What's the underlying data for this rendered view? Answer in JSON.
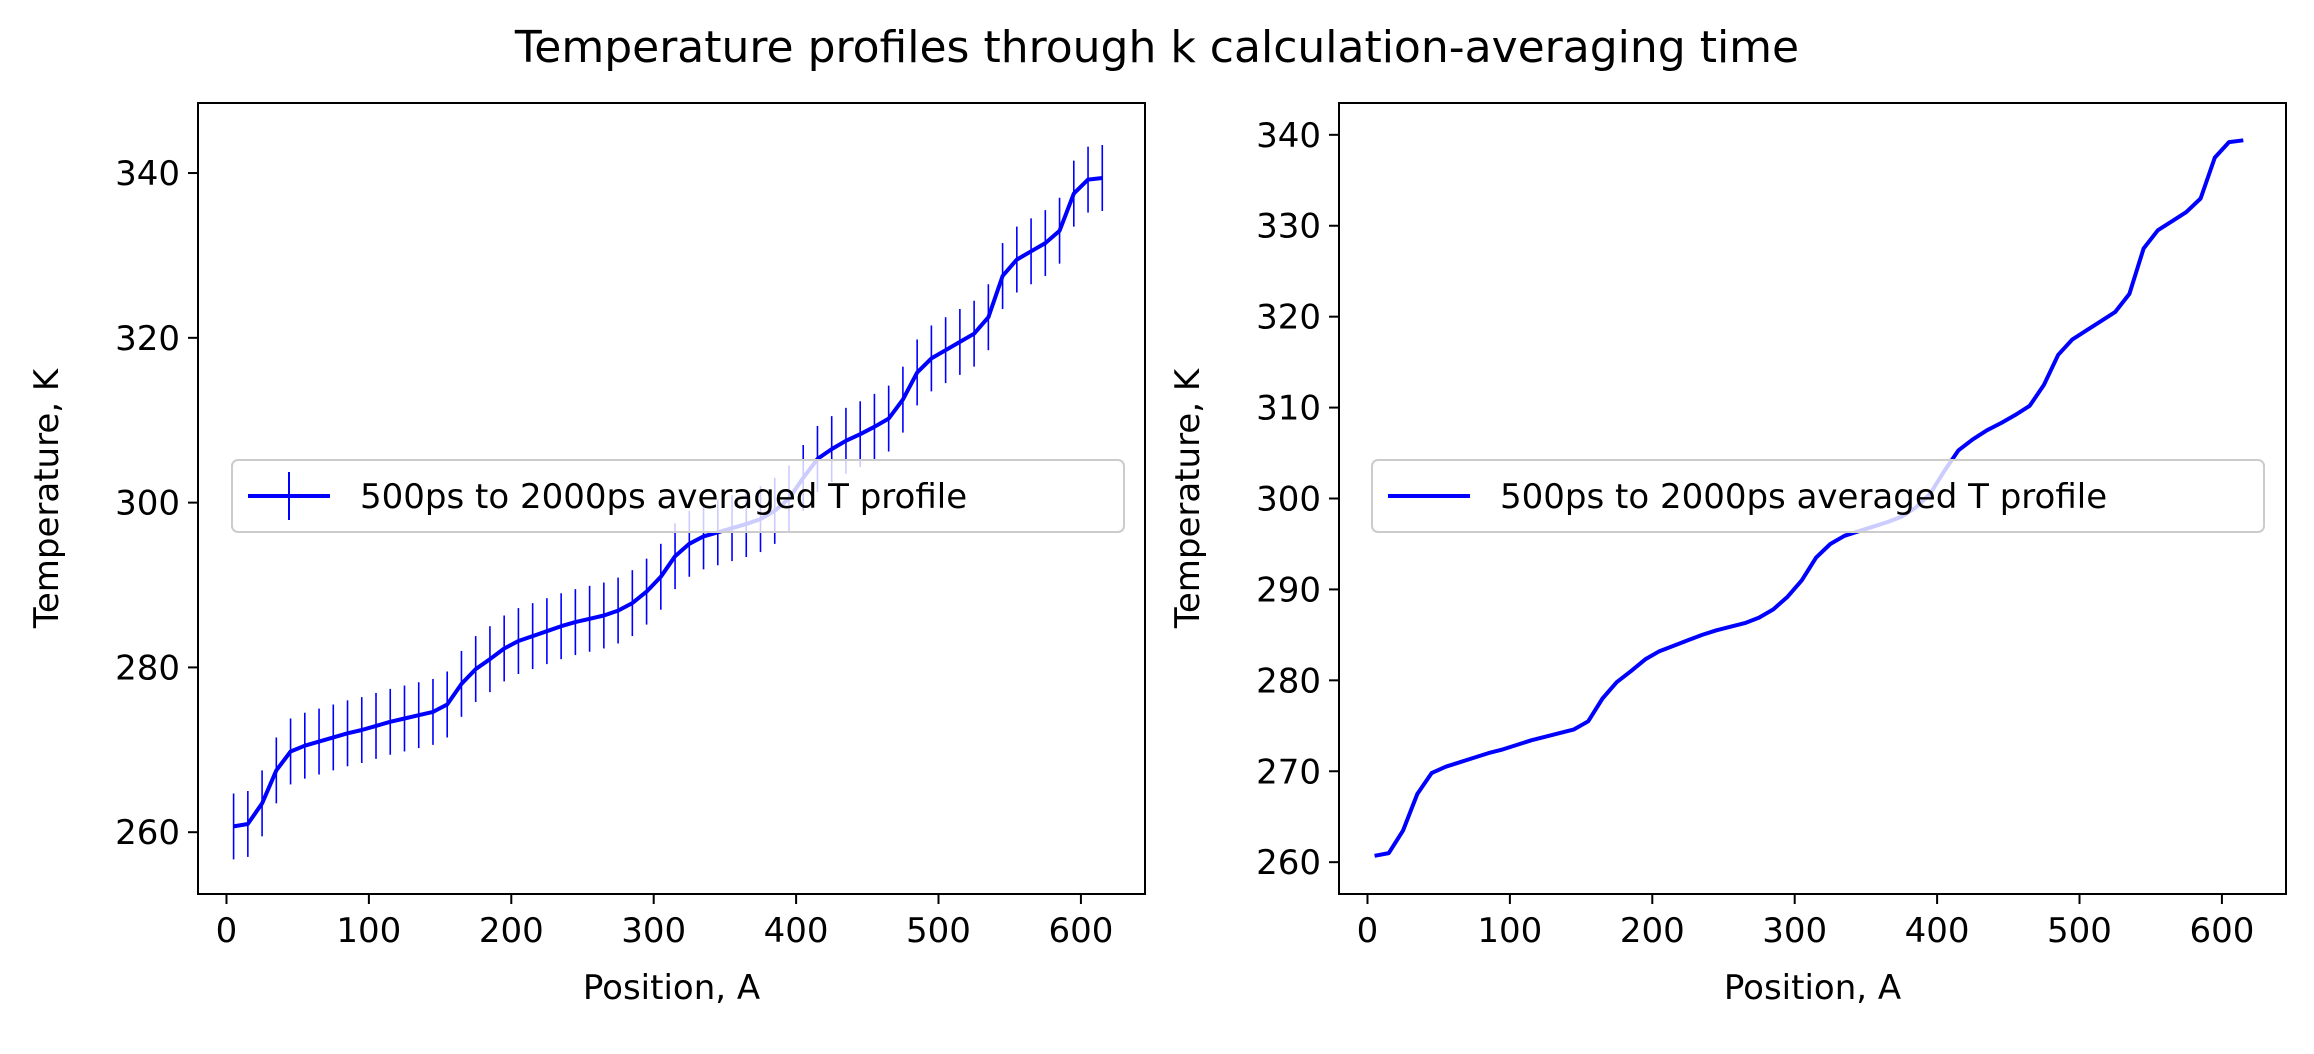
{
  "figure": {
    "suptitle": "Temperature profiles through k calculation-averaging time"
  },
  "chart_data": [
    {
      "type": "line",
      "error_bars": true,
      "xlabel": "Position, A",
      "ylabel": "Temperature, K",
      "xlim": [
        -20,
        645
      ],
      "ylim": [
        252.5,
        348.5
      ],
      "xticks": [
        0,
        100,
        200,
        300,
        400,
        500,
        600
      ],
      "yticks": [
        260,
        280,
        300,
        320,
        340
      ],
      "legend": {
        "placement": "center-left"
      },
      "color": "#0000ff",
      "error_half_width": 4.0,
      "series": [
        {
          "name": "500ps to 2000ps averaged T profile",
          "x": [
            5,
            15,
            25,
            35,
            45,
            55,
            65,
            75,
            85,
            95,
            105,
            115,
            125,
            135,
            145,
            155,
            165,
            175,
            185,
            195,
            205,
            215,
            225,
            235,
            245,
            255,
            265,
            275,
            285,
            295,
            305,
            315,
            325,
            335,
            345,
            355,
            365,
            375,
            385,
            395,
            405,
            415,
            425,
            435,
            445,
            455,
            465,
            475,
            485,
            495,
            505,
            515,
            525,
            535,
            545,
            555,
            565,
            575,
            585,
            595,
            605,
            615
          ],
          "y": [
            260.7,
            261.0,
            263.5,
            267.5,
            269.8,
            270.5,
            271.0,
            271.5,
            272.0,
            272.4,
            272.9,
            273.4,
            273.8,
            274.2,
            274.6,
            275.5,
            278.0,
            279.8,
            281.0,
            282.3,
            283.2,
            283.8,
            284.4,
            285.0,
            285.5,
            285.9,
            286.3,
            286.9,
            287.8,
            289.2,
            291.0,
            293.5,
            295.0,
            295.9,
            296.4,
            296.9,
            297.4,
            298.0,
            299.0,
            300.5,
            303.0,
            305.3,
            306.5,
            307.5,
            308.3,
            309.2,
            310.2,
            312.5,
            315.8,
            317.5,
            318.5,
            319.5,
            320.5,
            322.5,
            327.5,
            329.5,
            330.5,
            331.5,
            333.0,
            337.5,
            339.2,
            339.4
          ]
        }
      ]
    },
    {
      "type": "line",
      "error_bars": false,
      "xlabel": "Position, A",
      "ylabel": "Temperature, K",
      "xlim": [
        -20,
        645
      ],
      "ylim": [
        256.5,
        343.5
      ],
      "xticks": [
        0,
        100,
        200,
        300,
        400,
        500,
        600
      ],
      "yticks": [
        260,
        270,
        280,
        290,
        300,
        310,
        320,
        330,
        340
      ],
      "legend": {
        "placement": "center-left"
      },
      "color": "#0000ff",
      "series": [
        {
          "name": "500ps to 2000ps averaged T profile",
          "x": [
            5,
            15,
            25,
            35,
            45,
            55,
            65,
            75,
            85,
            95,
            105,
            115,
            125,
            135,
            145,
            155,
            165,
            175,
            185,
            195,
            205,
            215,
            225,
            235,
            245,
            255,
            265,
            275,
            285,
            295,
            305,
            315,
            325,
            335,
            345,
            355,
            365,
            375,
            385,
            395,
            405,
            415,
            425,
            435,
            445,
            455,
            465,
            475,
            485,
            495,
            505,
            515,
            525,
            535,
            545,
            555,
            565,
            575,
            585,
            595,
            605,
            615
          ],
          "y": [
            260.7,
            261.0,
            263.5,
            267.5,
            269.8,
            270.5,
            271.0,
            271.5,
            272.0,
            272.4,
            272.9,
            273.4,
            273.8,
            274.2,
            274.6,
            275.5,
            278.0,
            279.8,
            281.0,
            282.3,
            283.2,
            283.8,
            284.4,
            285.0,
            285.5,
            285.9,
            286.3,
            286.9,
            287.8,
            289.2,
            291.0,
            293.5,
            295.0,
            295.9,
            296.4,
            296.9,
            297.4,
            298.0,
            299.0,
            300.5,
            303.0,
            305.3,
            306.5,
            307.5,
            308.3,
            309.2,
            310.2,
            312.5,
            315.8,
            317.5,
            318.5,
            319.5,
            320.5,
            322.5,
            327.5,
            329.5,
            330.5,
            331.5,
            333.0,
            337.5,
            339.2,
            339.4
          ]
        }
      ]
    }
  ]
}
